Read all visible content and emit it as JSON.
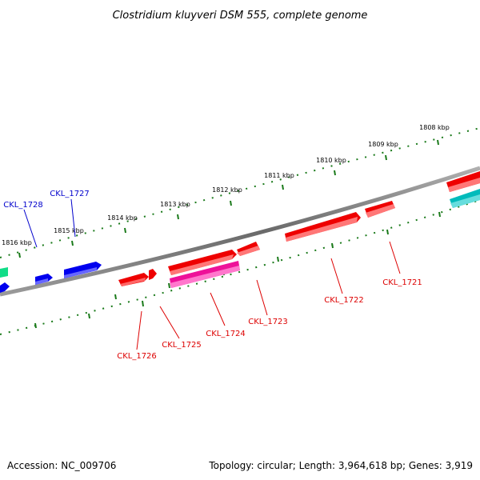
{
  "title": "Clostridium kluyveri DSM 555, complete genome",
  "accession": "Accession: NC_009706",
  "summary": "Topology: circular; Length: 3,964,618 bp; Genes: 3,919",
  "colors": {
    "backbone": "#7a7a7a",
    "ticks": "#1a7a1a",
    "top_strand_label": "#0000cc",
    "bottom_strand_label": "#dd0000",
    "gene_blue": "#0000ee",
    "gene_red": "#ee0000",
    "gene_magenta": "#ee1199",
    "gene_cyan": "#00bbbb",
    "gene_green": "#11dd88"
  },
  "kbp_labels": [
    "1808 kbp",
    "1809 kbp",
    "1810 kbp",
    "1811 kbp",
    "1812 kbp",
    "1813 kbp",
    "1814 kbp",
    "1815 kbp",
    "1816 kbp"
  ],
  "gene_labels_top": [
    "CKL_1727",
    "CKL_1728"
  ],
  "gene_labels_bottom": [
    "CKL_1721",
    "CKL_1722",
    "CKL_1723",
    "CKL_1724",
    "CKL_1725",
    "CKL_1726"
  ]
}
